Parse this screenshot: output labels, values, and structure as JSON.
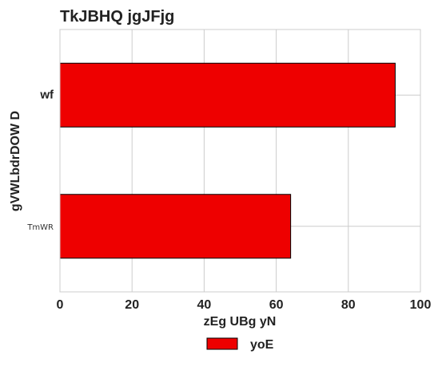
{
  "chart_data": {
    "type": "bar",
    "orientation": "horizontal",
    "title": "TkJBHQ jgJFjg",
    "xlabel": "zEg UBg yN",
    "ylabel": "gVWLbdrDOW D",
    "categories": [
      "wf",
      "TmWR"
    ],
    "series": [
      {
        "name": "yoE",
        "values": [
          93,
          64
        ],
        "color": "#ee0000"
      }
    ],
    "xlim": [
      0,
      100
    ],
    "xticks": [
      "0",
      "20",
      "40",
      "60",
      "80",
      "100"
    ],
    "grid": true,
    "legend_position": "bottom-center"
  }
}
